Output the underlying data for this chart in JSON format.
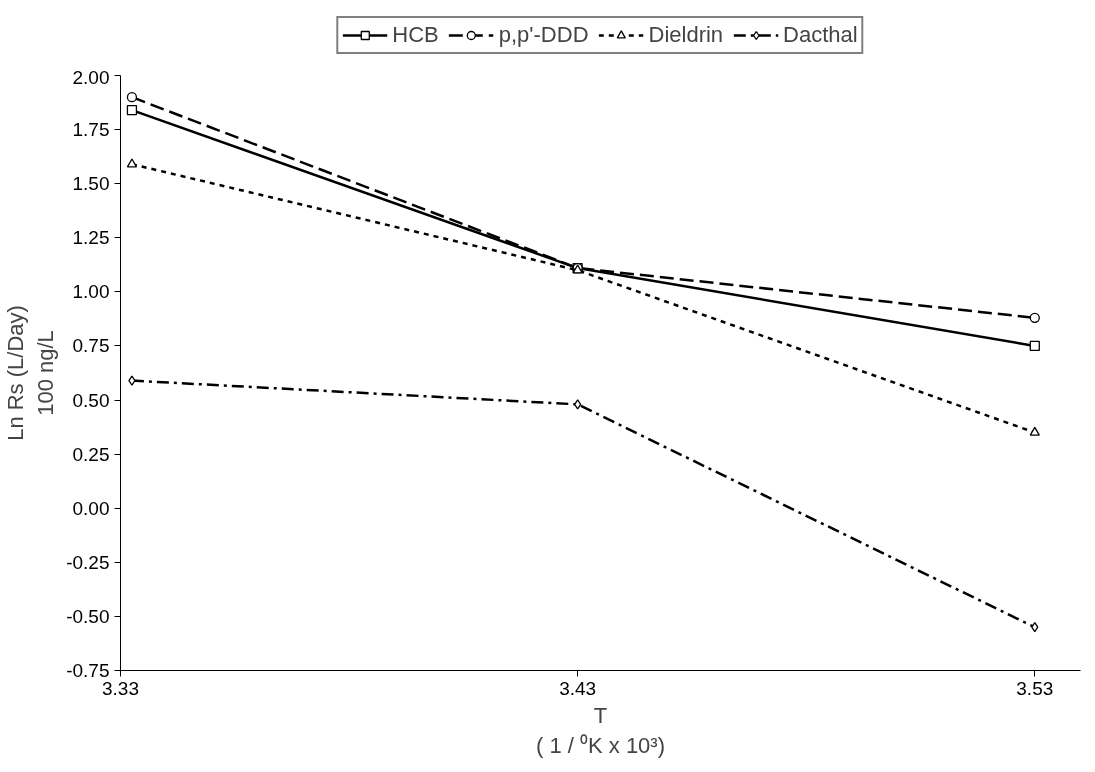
{
  "chart_data": {
    "type": "line",
    "xlabel": "T\n( 1 / ⁰K x 10³)",
    "ylabel": "Ln Rs (L/Day)\n100 ng/L",
    "x": [
      3.3325,
      3.43,
      3.53
    ],
    "series": [
      {
        "name": "HCB",
        "color": "#000000",
        "marker": "square",
        "line_style": "solid",
        "values": [
          1.84,
          1.11,
          0.75
        ]
      },
      {
        "name": "p,p'-DDD",
        "color": "#000000",
        "marker": "circle",
        "line_style": "dashed",
        "values": [
          1.9,
          1.11,
          0.88
        ]
      },
      {
        "name": "Dieldrin",
        "color": "#000000",
        "marker": "triangle",
        "line_style": "dotted",
        "values": [
          1.59,
          1.1,
          0.35
        ]
      },
      {
        "name": "Dacthal",
        "color": "#000000",
        "marker": "diamond",
        "line_style": "dashdot",
        "values": [
          0.59,
          0.48,
          -0.55
        ]
      }
    ],
    "xlim": [
      3.33,
      3.54
    ],
    "xticks": [
      3.33,
      3.43,
      3.53
    ],
    "ylim": [
      -0.75,
      2.0
    ],
    "yticks": [
      {
        "value": -0.75,
        "label": "-0.75"
      },
      {
        "value": -0.5,
        "label": "-0.50"
      },
      {
        "value": -0.25,
        "label": "-0.25"
      },
      {
        "value": 0,
        "label": "0.00"
      },
      {
        "value": 0.25,
        "label": "0.25"
      },
      {
        "value": 0.5,
        "label": "0.50"
      },
      {
        "value": 0.75,
        "label": "0.75"
      },
      {
        "value": 1.0,
        "label": "1.00"
      },
      {
        "value": 1.25,
        "label": "1.25"
      },
      {
        "value": 1.5,
        "label": "1.50"
      },
      {
        "value": 1.75,
        "label": "1.75"
      },
      {
        "value": 2.0,
        "label": "2.00"
      }
    ],
    "grid": false,
    "legend": "top"
  }
}
